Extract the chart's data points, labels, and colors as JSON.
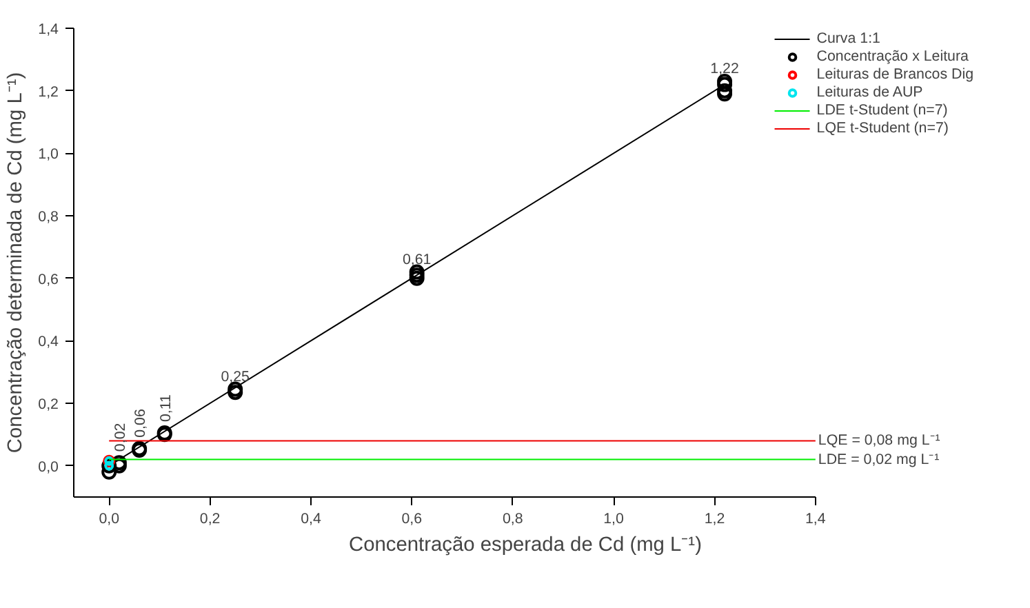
{
  "chart_data": {
    "type": "scatter",
    "xlabel": "Concentração esperada de Cd (mg L⁻¹)",
    "ylabel": "Concentração determinada de Cd (mg L⁻¹)",
    "xlim": [
      -0.07,
      1.4
    ],
    "ylim": [
      -0.1,
      1.4
    ],
    "xticks": [
      {
        "value": 0,
        "label": "0,0"
      },
      {
        "value": 0.2,
        "label": "0,2"
      },
      {
        "value": 0.4,
        "label": "0,4"
      },
      {
        "value": 0.6,
        "label": "0,6"
      },
      {
        "value": 0.8,
        "label": "0,8"
      },
      {
        "value": 1.0,
        "label": "1,0"
      },
      {
        "value": 1.2,
        "label": "1,2"
      },
      {
        "value": 1.4,
        "label": "1,4"
      }
    ],
    "yticks": [
      {
        "value": 0,
        "label": "0,0"
      },
      {
        "value": 0.2,
        "label": "0,2"
      },
      {
        "value": 0.4,
        "label": "0,4"
      },
      {
        "value": 0.6,
        "label": "0,6"
      },
      {
        "value": 0.8,
        "label": "0,8"
      },
      {
        "value": 1.0,
        "label": "1,0"
      },
      {
        "value": 1.2,
        "label": "1,2"
      },
      {
        "value": 1.4,
        "label": "1,4"
      }
    ],
    "grid": false,
    "legend": "right",
    "series": [
      {
        "name": "Curva 1:1",
        "type": "line",
        "marker": "none",
        "color": "#000000",
        "x": [
          0,
          1.22
        ],
        "values": [
          0,
          1.22
        ]
      },
      {
        "name": "Concentração x Leitura",
        "marker": "circle",
        "color": "#000000",
        "x": [
          0,
          0,
          0.02,
          0.02,
          0.06,
          0.06,
          0.11,
          0.11,
          0.25,
          0.25,
          0.61,
          0.61,
          0.61,
          1.22,
          1.22,
          1.22,
          1.22
        ],
        "values": [
          -0.02,
          0.0,
          0.0,
          0.01,
          0.05,
          0.055,
          0.1,
          0.105,
          0.235,
          0.245,
          0.6,
          0.61,
          0.62,
          1.19,
          1.2,
          1.22,
          1.23
        ]
      },
      {
        "name": "Leituras de Brancos Dig",
        "marker": "circle",
        "color": "#ff0000",
        "x": [
          0
        ],
        "values": [
          0.015
        ]
      },
      {
        "name": "Leituras de AUP",
        "marker": "circle",
        "color": "#00e5ee",
        "x": [
          0,
          0
        ],
        "values": [
          0.0,
          0.015
        ]
      },
      {
        "name": "LDE t-Student (n=7)",
        "type": "line",
        "marker": "none",
        "color": "#00ee00",
        "x": [
          0,
          1.4
        ],
        "values": [
          0.02,
          0.02
        ]
      },
      {
        "name": "LQE t-Student (n=7)",
        "type": "line",
        "marker": "none",
        "color": "#ee0000",
        "x": [
          0,
          1.4
        ],
        "values": [
          0.08,
          0.08
        ]
      }
    ],
    "annotations": [
      {
        "text": "1,22",
        "x": 1.22,
        "y": 1.23
      },
      {
        "text": "0,61",
        "x": 0.61,
        "y": 0.62
      },
      {
        "text": "0,25",
        "x": 0.25,
        "y": 0.245
      },
      {
        "text": "0,02",
        "x": 0.02,
        "y": 0.01
      },
      {
        "text": "0,06",
        "x": 0.06,
        "y": 0.055
      },
      {
        "text": "0,11",
        "x": 0.11,
        "y": 0.105
      },
      {
        "text": "LQE = 0,08 mg L⁻¹",
        "x": 1.4,
        "y": 0.08
      },
      {
        "text": "LDE = 0,02 mg L⁻¹",
        "x": 1.4,
        "y": 0.02
      }
    ]
  }
}
